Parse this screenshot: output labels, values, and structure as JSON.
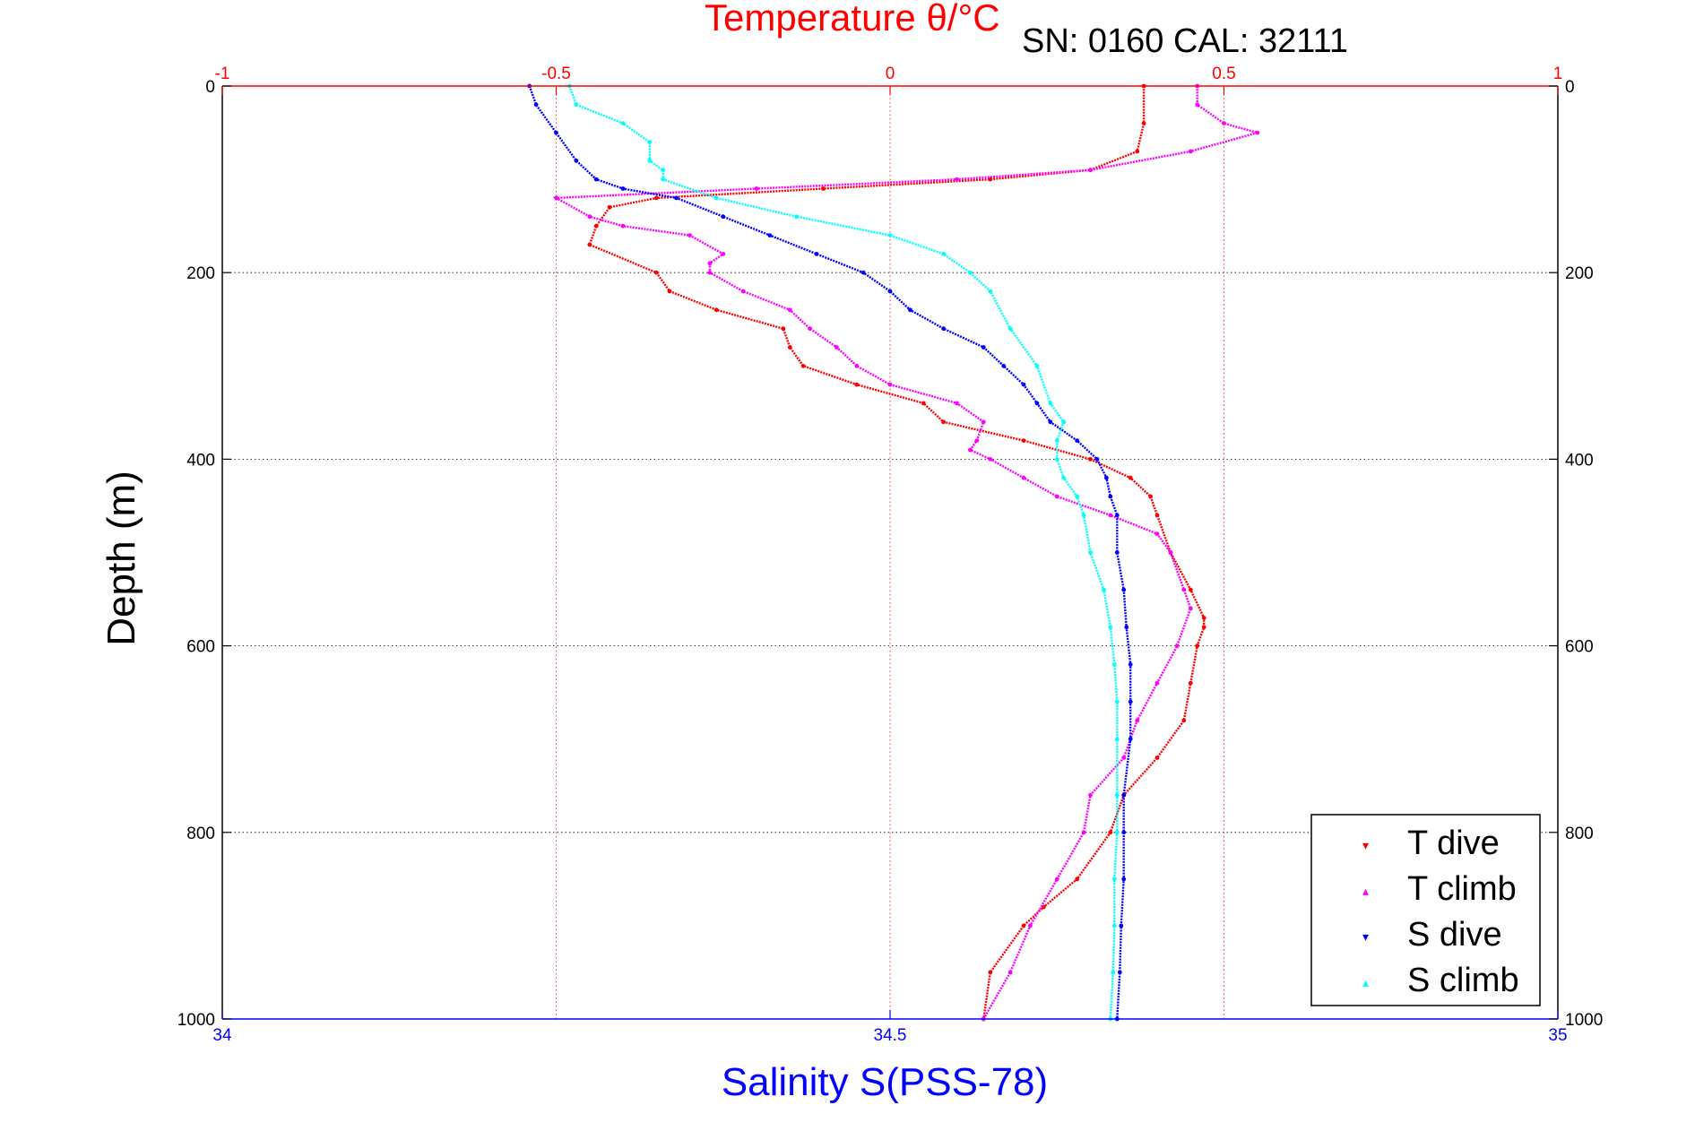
{
  "chart_data": {
    "type": "scatter",
    "title": "Temperature θ/°C",
    "info_text": "SN: 0160  CAL: 32111",
    "xlabel_top": "Temperature θ/°C",
    "xlabel_bottom": "Salinity S(PSS-78)",
    "ylabel": "Depth (m)",
    "x_top_range": [
      -1,
      1
    ],
    "x_top_ticks": [
      "-1",
      "-0.5",
      "0",
      "0.5",
      "1"
    ],
    "x_bottom_range": [
      34,
      35
    ],
    "x_bottom_ticks": [
      "34",
      "34.5",
      "35"
    ],
    "y_range": [
      0,
      1000
    ],
    "y_reversed": true,
    "y_ticks": [
      "0",
      "200",
      "400",
      "600",
      "800",
      "1000"
    ],
    "grid": true,
    "legend_position": "bottom-right",
    "colors": {
      "t_dive": "#ff0000",
      "t_climb": "#ff00ff",
      "s_dive": "#0000ff",
      "s_climb": "#00ffff",
      "top_axis": "#ff0000",
      "bottom_axis": "#0000ff"
    },
    "series": [
      {
        "name": "T dive",
        "axis": "top",
        "depth": [
          0,
          40,
          70,
          90,
          100,
          110,
          120,
          130,
          150,
          170,
          200,
          220,
          240,
          260,
          280,
          300,
          320,
          340,
          360,
          380,
          400,
          420,
          440,
          460,
          500,
          540,
          570,
          580,
          600,
          640,
          680,
          720,
          760,
          800,
          850,
          880,
          900,
          950,
          1000
        ],
        "values": [
          0.38,
          0.38,
          0.37,
          0.3,
          0.15,
          -0.1,
          -0.35,
          -0.42,
          -0.44,
          -0.45,
          -0.35,
          -0.33,
          -0.26,
          -0.16,
          -0.15,
          -0.13,
          -0.05,
          0.05,
          0.08,
          0.2,
          0.3,
          0.36,
          0.39,
          0.4,
          0.42,
          0.45,
          0.47,
          0.47,
          0.46,
          0.45,
          0.44,
          0.4,
          0.35,
          0.33,
          0.28,
          0.23,
          0.2,
          0.15,
          0.14
        ]
      },
      {
        "name": "T climb",
        "axis": "top",
        "depth": [
          0,
          20,
          40,
          50,
          70,
          90,
          100,
          110,
          120,
          140,
          150,
          160,
          180,
          190,
          200,
          220,
          240,
          260,
          280,
          300,
          320,
          340,
          360,
          380,
          390,
          400,
          420,
          440,
          460,
          480,
          500,
          540,
          560,
          600,
          640,
          680,
          720,
          760,
          800,
          850,
          900,
          950,
          1000
        ],
        "values": [
          0.46,
          0.46,
          0.5,
          0.55,
          0.45,
          0.3,
          0.1,
          -0.2,
          -0.5,
          -0.45,
          -0.4,
          -0.3,
          -0.25,
          -0.27,
          -0.27,
          -0.22,
          -0.15,
          -0.12,
          -0.08,
          -0.05,
          0.0,
          0.1,
          0.14,
          0.13,
          0.12,
          0.15,
          0.2,
          0.25,
          0.33,
          0.4,
          0.42,
          0.44,
          0.45,
          0.43,
          0.4,
          0.37,
          0.35,
          0.3,
          0.29,
          0.25,
          0.21,
          0.18,
          0.14
        ]
      },
      {
        "name": "S dive",
        "axis": "bottom",
        "depth": [
          0,
          20,
          50,
          80,
          100,
          110,
          120,
          140,
          160,
          180,
          200,
          220,
          240,
          260,
          280,
          300,
          320,
          340,
          360,
          380,
          400,
          420,
          440,
          460,
          500,
          540,
          580,
          620,
          660,
          700,
          760,
          800,
          850,
          900,
          950,
          1000
        ],
        "values": [
          34.23,
          34.235,
          34.25,
          34.265,
          34.28,
          34.3,
          34.34,
          34.375,
          34.41,
          34.445,
          34.48,
          34.5,
          34.515,
          34.54,
          34.57,
          34.585,
          34.6,
          34.61,
          34.62,
          34.64,
          34.655,
          34.662,
          34.665,
          34.67,
          34.67,
          34.675,
          34.677,
          34.68,
          34.68,
          34.68,
          34.675,
          34.675,
          34.675,
          34.673,
          34.672,
          34.67
        ]
      },
      {
        "name": "S climb",
        "axis": "bottom",
        "depth": [
          0,
          20,
          40,
          60,
          80,
          90,
          100,
          120,
          140,
          160,
          180,
          200,
          220,
          260,
          300,
          340,
          360,
          380,
          400,
          420,
          440,
          460,
          500,
          540,
          580,
          620,
          660,
          700,
          760,
          800,
          850,
          900,
          950,
          1000
        ],
        "values": [
          34.26,
          34.265,
          34.3,
          34.32,
          34.32,
          34.33,
          34.33,
          34.37,
          34.43,
          34.5,
          34.54,
          34.56,
          34.575,
          34.59,
          34.61,
          34.62,
          34.63,
          34.625,
          34.625,
          34.63,
          34.64,
          34.645,
          34.65,
          34.66,
          34.665,
          34.668,
          34.67,
          34.67,
          34.67,
          34.67,
          34.668,
          34.668,
          34.667,
          34.665
        ]
      }
    ]
  }
}
